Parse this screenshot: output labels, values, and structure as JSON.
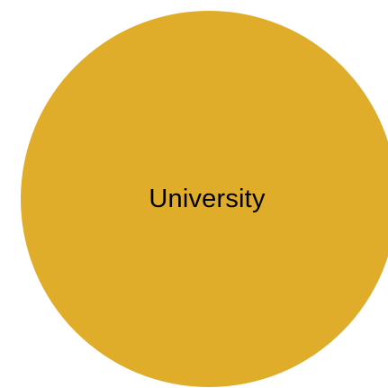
{
  "node": {
    "label": "University",
    "fill_color": "#e0ad2b",
    "text_color": "#000000"
  }
}
